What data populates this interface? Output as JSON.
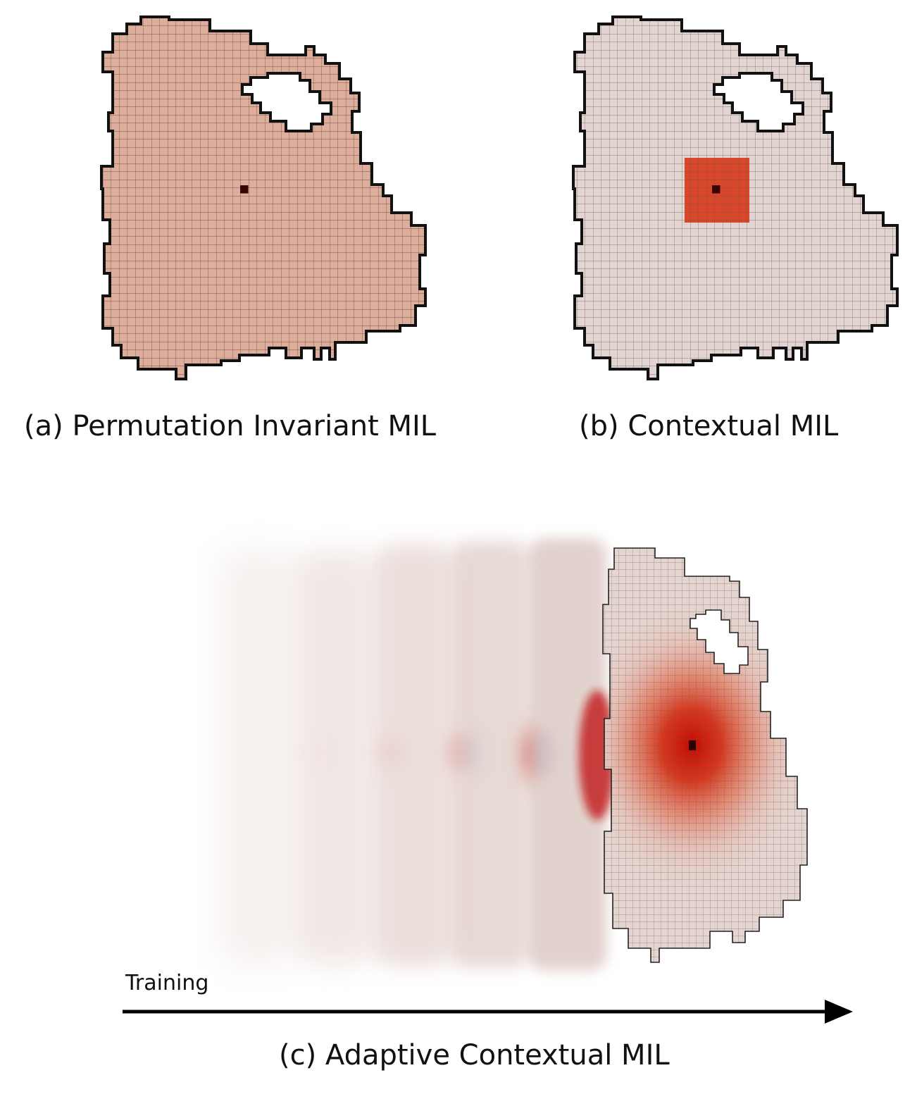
{
  "panels": {
    "a": {
      "caption": "(a) Permutation Invariant MIL"
    },
    "b": {
      "caption": "(b) Contextual MIL"
    },
    "c": {
      "caption": "(c) Adaptive Contextual MIL"
    }
  },
  "axis": {
    "label": "Training"
  },
  "colors": {
    "tissue_uniform": "#dcae9b",
    "tissue_light": "#e2d4d0",
    "context_patch": "#d9472b",
    "focus_patch": "#3a0400",
    "heat_peak": "#c40a00",
    "outline": "#111111",
    "grid_line": "#5a3a30"
  }
}
